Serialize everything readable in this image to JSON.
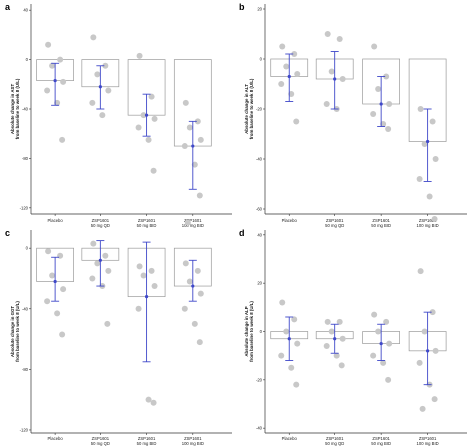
{
  "categories": [
    [
      "Placebo"
    ],
    [
      "ZSP1601",
      "50 mg QD"
    ],
    [
      "ZSP1601",
      "50 mg BID"
    ],
    [
      "ZSP1601",
      "100 mg BID"
    ]
  ],
  "colors": {
    "bar_fill": "#ffffff",
    "bar_stroke": "#9a9a9a",
    "point": "#c8c8c8",
    "errorbar": "#3f48c9",
    "axis": "#333333"
  },
  "chart_data": [
    {
      "type": "bar",
      "panel": "a",
      "ylabel": [
        "Absolute change in AST",
        "from baseline to week 8 (U/L)"
      ],
      "ylim": [
        -125,
        45
      ],
      "yticks": [
        -120,
        -80,
        -40,
        0,
        40
      ],
      "categories": [
        "Placebo",
        "ZSP1601 50 mg QD",
        "ZSP1601 50 mg BID",
        "ZSP1601 100 mg BID"
      ],
      "values": [
        -17,
        -22,
        -45,
        -70
      ],
      "mean": [
        -17,
        -22,
        -45,
        -70
      ],
      "ci_low": [
        -37,
        -40,
        -62,
        -105
      ],
      "ci_high": [
        -3,
        -5,
        -28,
        -50
      ],
      "points": [
        [
          12,
          0,
          -5,
          -18,
          -25,
          -35,
          -65
        ],
        [
          18,
          -5,
          -12,
          -25,
          -35,
          -45
        ],
        [
          3,
          -30,
          -45,
          -48,
          -55,
          -65,
          -90
        ],
        [
          -35,
          -50,
          -55,
          -65,
          -70,
          -85,
          -110,
          -132
        ]
      ]
    },
    {
      "type": "bar",
      "panel": "b",
      "ylabel": [
        "Absolute change in ALT",
        "from baseline to week 8 (U/L)"
      ],
      "ylim": [
        -62,
        22
      ],
      "yticks": [
        -60,
        -40,
        -20,
        0,
        20
      ],
      "categories": [
        "Placebo",
        "ZSP1601 50 mg QD",
        "ZSP1601 50 mg BID",
        "ZSP1601 100 mg BID"
      ],
      "values": [
        -7,
        -8,
        -18,
        -33
      ],
      "mean": [
        -7,
        -8,
        -18,
        -33
      ],
      "ci_low": [
        -17,
        -20,
        -27,
        -49
      ],
      "ci_high": [
        2,
        3,
        -7,
        -20
      ],
      "points": [
        [
          5,
          2,
          -3,
          -6,
          -10,
          -14,
          -25
        ],
        [
          10,
          8,
          -5,
          -8,
          -18,
          -20
        ],
        [
          5,
          -7,
          -12,
          -18,
          -22,
          -26,
          -28
        ],
        [
          -20,
          -25,
          -34,
          -40,
          -48,
          -55,
          -64
        ]
      ]
    },
    {
      "type": "bar",
      "panel": "c",
      "ylabel": [
        "Absolute change in GGT",
        "from baseline to week 8 (U/L)"
      ],
      "ylim": [
        -122,
        12
      ],
      "yticks": [
        -120,
        -80,
        -40,
        0
      ],
      "categories": [
        "Placebo",
        "ZSP1601 50 mg QD",
        "ZSP1601 50 mg BID",
        "ZSP1601 100 mg BID"
      ],
      "values": [
        -22,
        -8,
        -32,
        -25
      ],
      "mean": [
        -22,
        -8,
        -32,
        -25
      ],
      "ci_low": [
        -35,
        -25,
        -75,
        -35
      ],
      "ci_high": [
        -6,
        5,
        4,
        -8
      ],
      "points": [
        [
          -2,
          -5,
          -18,
          -27,
          -35,
          -43,
          -57
        ],
        [
          3,
          -5,
          -10,
          -15,
          -20,
          -25,
          -50
        ],
        [
          -12,
          -15,
          -18,
          -25,
          -40,
          -100,
          -102
        ],
        [
          -10,
          -15,
          -22,
          -30,
          -40,
          -50,
          -62
        ]
      ]
    },
    {
      "type": "bar",
      "panel": "d",
      "ylabel": [
        "Absolute change in ALP",
        "from baseline to week 8 (U/L)"
      ],
      "ylim": [
        -42,
        42
      ],
      "yticks": [
        -40,
        -20,
        0,
        20,
        40
      ],
      "categories": [
        "Placebo",
        "ZSP1601 50 mg QD",
        "ZSP1601 50 mg BID",
        "ZSP1601 100 mg BID"
      ],
      "values": [
        -3,
        -3,
        -5,
        -8
      ],
      "mean": [
        -3,
        -3,
        -5,
        -8
      ],
      "ci_low": [
        -12,
        -9,
        -12,
        -22
      ],
      "ci_high": [
        6,
        3,
        3,
        8
      ],
      "points": [
        [
          12,
          5,
          0,
          -5,
          -10,
          -15,
          -22
        ],
        [
          4,
          4,
          0,
          -3,
          -6,
          -10,
          -14
        ],
        [
          7,
          4,
          0,
          -5,
          -10,
          -13,
          -20
        ],
        [
          25,
          8,
          0,
          -8,
          -13,
          -22,
          -28,
          -32
        ]
      ]
    }
  ]
}
